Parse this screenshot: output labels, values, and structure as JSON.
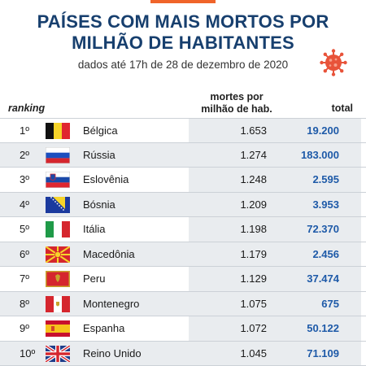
{
  "title": {
    "line1": "PAÍSES COM MAIS MORTOS POR",
    "line2": "MILHÃO DE HABITANTES"
  },
  "subtitle": "dados até 17h de 28 de dezembro de 2020",
  "icon": "coronavirus-icon",
  "colors": {
    "title": "#173f6e",
    "total": "#1e5aa8",
    "accent": "#f0642a",
    "virus": "#e8533a",
    "shade": "#e9ecef"
  },
  "headers": {
    "ranking": "ranking",
    "rate_line1": "mortes por",
    "rate_line2": "milhão de hab.",
    "total": "total"
  },
  "rows": [
    {
      "rank": "1º",
      "flag": "belgium-flag",
      "country": "Bélgica",
      "rate": "1.653",
      "total": "19.200"
    },
    {
      "rank": "2º",
      "flag": "russia-flag",
      "country": "Rússia",
      "rate": "1.274",
      "total": "183.000"
    },
    {
      "rank": "3º",
      "flag": "slovenia-flag",
      "country": "Eslovênia",
      "rate": "1.248",
      "total": "2.595"
    },
    {
      "rank": "4º",
      "flag": "bosnia-flag",
      "country": "Bósnia",
      "rate": "1.209",
      "total": "3.953"
    },
    {
      "rank": "5º",
      "flag": "italy-flag",
      "country": "Itália",
      "rate": "1.198",
      "total": "72.370"
    },
    {
      "rank": "6º",
      "flag": "macedonia-flag",
      "country": "Macedônia",
      "rate": "1.179",
      "total": "2.456"
    },
    {
      "rank": "7º",
      "flag": "peru-flag",
      "country": "Peru",
      "rate": "1.129",
      "total": "37.474"
    },
    {
      "rank": "8º",
      "flag": "montenegro-flag",
      "country": "Montenegro",
      "rate": "1.075",
      "total": "675"
    },
    {
      "rank": "9º",
      "flag": "spain-flag",
      "country": "Espanha",
      "rate": "1.072",
      "total": "50.122"
    },
    {
      "rank": "10º",
      "flag": "uk-flag",
      "country": "Reino Unido",
      "rate": "1.045",
      "total": "71.109"
    }
  ]
}
